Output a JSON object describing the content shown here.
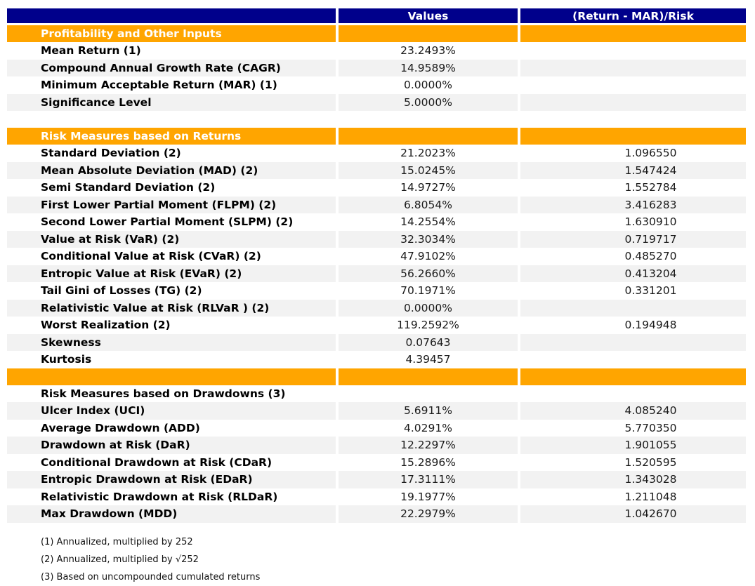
{
  "colors": {
    "header_bg": "#00008B",
    "band_bg": "#FFA500",
    "alt_row_bg": "#F2F2F2"
  },
  "table": {
    "columns": {
      "metric_label": "",
      "values_label": "Values",
      "ratio_label": "(Return - MAR)/Risk"
    },
    "rows": [
      {
        "kind": "band",
        "label": "Profitability and Other Inputs"
      },
      {
        "kind": "data",
        "label": "Mean Return (1)",
        "value": "23.2493%",
        "ratio": "",
        "shaded": false
      },
      {
        "kind": "data",
        "label": "Compound Annual Growth Rate (CAGR)",
        "value": "14.9589%",
        "ratio": "",
        "shaded": true
      },
      {
        "kind": "data",
        "label": "Minimum Acceptable Return (MAR) (1)",
        "value": "0.0000%",
        "ratio": "",
        "shaded": false
      },
      {
        "kind": "data",
        "label": "Significance Level",
        "value": "5.0000%",
        "ratio": "",
        "shaded": true
      },
      {
        "kind": "spacer"
      },
      {
        "kind": "band",
        "label": "Risk Measures based on Returns"
      },
      {
        "kind": "data",
        "label": "Standard Deviation (2)",
        "value": "21.2023%",
        "ratio": "1.096550",
        "shaded": false
      },
      {
        "kind": "data",
        "label": "Mean Absolute Deviation (MAD) (2)",
        "value": "15.0245%",
        "ratio": "1.547424",
        "shaded": true
      },
      {
        "kind": "data",
        "label": "Semi Standard Deviation (2)",
        "value": "14.9727%",
        "ratio": "1.552784",
        "shaded": false
      },
      {
        "kind": "data",
        "label": "First Lower Partial Moment (FLPM) (2)",
        "value": "6.8054%",
        "ratio": "3.416283",
        "shaded": true
      },
      {
        "kind": "data",
        "label": "Second Lower Partial Moment (SLPM) (2)",
        "value": "14.2554%",
        "ratio": "1.630910",
        "shaded": false
      },
      {
        "kind": "data",
        "label": "Value at Risk (VaR) (2)",
        "value": "32.3034%",
        "ratio": "0.719717",
        "shaded": true
      },
      {
        "kind": "data",
        "label": "Conditional Value at Risk (CVaR) (2)",
        "value": "47.9102%",
        "ratio": "0.485270",
        "shaded": false
      },
      {
        "kind": "data",
        "label": "Entropic Value at Risk (EVaR) (2)",
        "value": "56.2660%",
        "ratio": "0.413204",
        "shaded": true
      },
      {
        "kind": "data",
        "label": "Tail Gini of Losses (TG) (2)",
        "value": "70.1971%",
        "ratio": "0.331201",
        "shaded": false
      },
      {
        "kind": "data",
        "label": "Relativistic Value at Risk (RLVaR ) (2)",
        "value": "0.0000%",
        "ratio": "",
        "shaded": true
      },
      {
        "kind": "data",
        "label": "Worst Realization (2)",
        "value": "119.2592%",
        "ratio": "0.194948",
        "shaded": false
      },
      {
        "kind": "data",
        "label": "Skewness",
        "value": "0.07643",
        "ratio": "",
        "shaded": true
      },
      {
        "kind": "data",
        "label": "Kurtosis",
        "value": "4.39457",
        "ratio": "",
        "shaded": false
      },
      {
        "kind": "band",
        "label": ""
      },
      {
        "kind": "subheader",
        "label": "Risk Measures based on Drawdowns (3)",
        "value": "",
        "ratio": ""
      },
      {
        "kind": "data",
        "label": "Ulcer Index (UCI)",
        "value": "5.6911%",
        "ratio": "4.085240",
        "shaded": true
      },
      {
        "kind": "data",
        "label": "Average Drawdown (ADD)",
        "value": "4.0291%",
        "ratio": "5.770350",
        "shaded": false
      },
      {
        "kind": "data",
        "label": "Drawdown at Risk (DaR)",
        "value": "12.2297%",
        "ratio": "1.901055",
        "shaded": true
      },
      {
        "kind": "data",
        "label": "Conditional Drawdown at Risk (CDaR)",
        "value": "15.2896%",
        "ratio": "1.520595",
        "shaded": false
      },
      {
        "kind": "data",
        "label": "Entropic Drawdown at Risk (EDaR)",
        "value": "17.3111%",
        "ratio": "1.343028",
        "shaded": true
      },
      {
        "kind": "data",
        "label": "Relativistic Drawdown at Risk (RLDaR)",
        "value": "19.1977%",
        "ratio": "1.211048",
        "shaded": false
      },
      {
        "kind": "data",
        "label": "Max Drawdown (MDD)",
        "value": "22.2979%",
        "ratio": "1.042670",
        "shaded": true
      }
    ],
    "footnotes": [
      "(1) Annualized, multiplied by 252",
      "(2) Annualized, multiplied by √252",
      "(3) Based on uncompounded cumulated returns"
    ]
  }
}
